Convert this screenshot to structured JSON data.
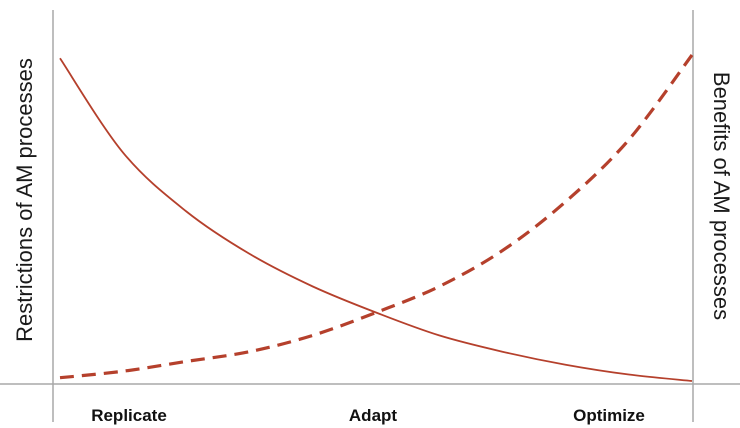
{
  "chart_data": {
    "type": "line",
    "categories": [
      "Replicate",
      "Adapt",
      "Optimize"
    ],
    "x_range": [
      0,
      1
    ],
    "ylabel_left": "Restrictions of AM processes",
    "ylabel_right": "Benefits of AM processes",
    "y_range": [
      0,
      1
    ],
    "grid": false,
    "legend": "none",
    "series": [
      {
        "style": "solid",
        "color": "#b5402c",
        "x": [
          0,
          0.1,
          0.2,
          0.3,
          0.4,
          0.5,
          0.6,
          0.7,
          0.8,
          0.9,
          1.0
        ],
        "y": [
          0.99,
          0.7,
          0.52,
          0.39,
          0.29,
          0.21,
          0.14,
          0.09,
          0.05,
          0.02,
          0.0
        ]
      },
      {
        "style": "dashed",
        "color": "#b5402c",
        "x": [
          0,
          0.1,
          0.2,
          0.3,
          0.4,
          0.5,
          0.6,
          0.7,
          0.8,
          0.9,
          1.0
        ],
        "y": [
          0.01,
          0.03,
          0.06,
          0.09,
          0.14,
          0.21,
          0.29,
          0.4,
          0.55,
          0.74,
          1.0
        ]
      }
    ],
    "colors": {
      "axis": "#a8a8a8",
      "curve": "#b5402c"
    }
  }
}
